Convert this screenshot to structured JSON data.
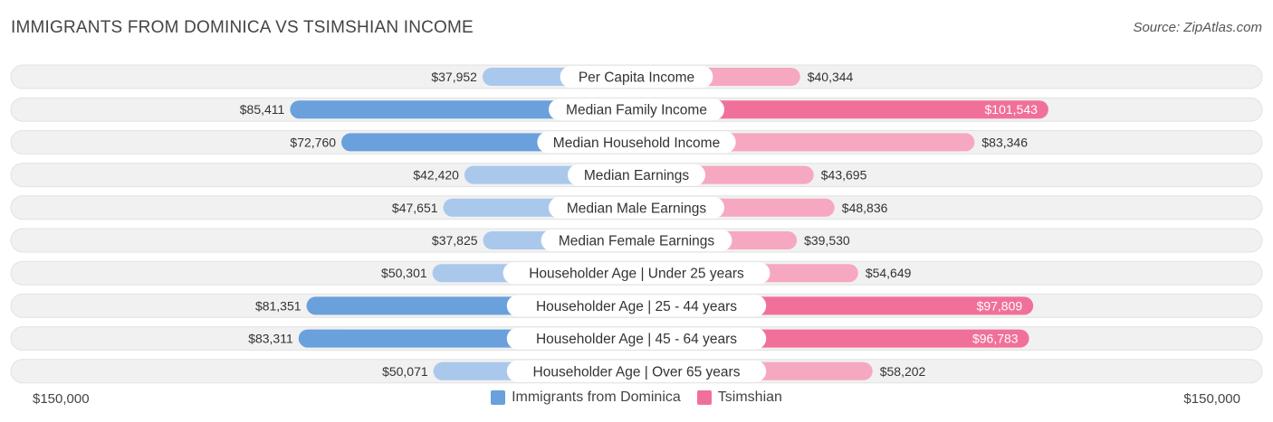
{
  "header": {
    "title": "IMMIGRANTS FROM DOMINICA VS TSIMSHIAN INCOME",
    "source": "Source: ZipAtlas.com"
  },
  "axis": {
    "left_label": "$150,000",
    "right_label": "$150,000"
  },
  "colors": {
    "left_strong": "#6aa0dc",
    "left_light": "#a9c8ec",
    "right_strong": "#f07099",
    "right_light": "#f6a8c1",
    "track": "#f1f1f1"
  },
  "chart_data": {
    "type": "bar",
    "orientation": "diverging-horizontal",
    "xlim": [
      0,
      150000
    ],
    "categories": [
      "Per Capita Income",
      "Median Family Income",
      "Median Household Income",
      "Median Earnings",
      "Median Male Earnings",
      "Median Female Earnings",
      "Householder Age | Under 25 years",
      "Householder Age | 25 - 44 years",
      "Householder Age | 45 - 64 years",
      "Householder Age | Over 65 years"
    ],
    "series": [
      {
        "name": "Immigrants from Dominica",
        "values": [
          37952,
          85411,
          72760,
          42420,
          47651,
          37825,
          50301,
          81351,
          83311,
          50071
        ],
        "labels": [
          "$37,952",
          "$85,411",
          "$72,760",
          "$42,420",
          "$47,651",
          "$37,825",
          "$50,301",
          "$81,351",
          "$83,311",
          "$50,071"
        ]
      },
      {
        "name": "Tsimshian",
        "values": [
          40344,
          101543,
          83346,
          43695,
          48836,
          39530,
          54649,
          97809,
          96783,
          58202
        ],
        "labels": [
          "$40,344",
          "$101,543",
          "$83,346",
          "$43,695",
          "$48,836",
          "$39,530",
          "$54,649",
          "$97,809",
          "$96,783",
          "$58,202"
        ]
      }
    ],
    "legend_position": "bottom-center"
  }
}
